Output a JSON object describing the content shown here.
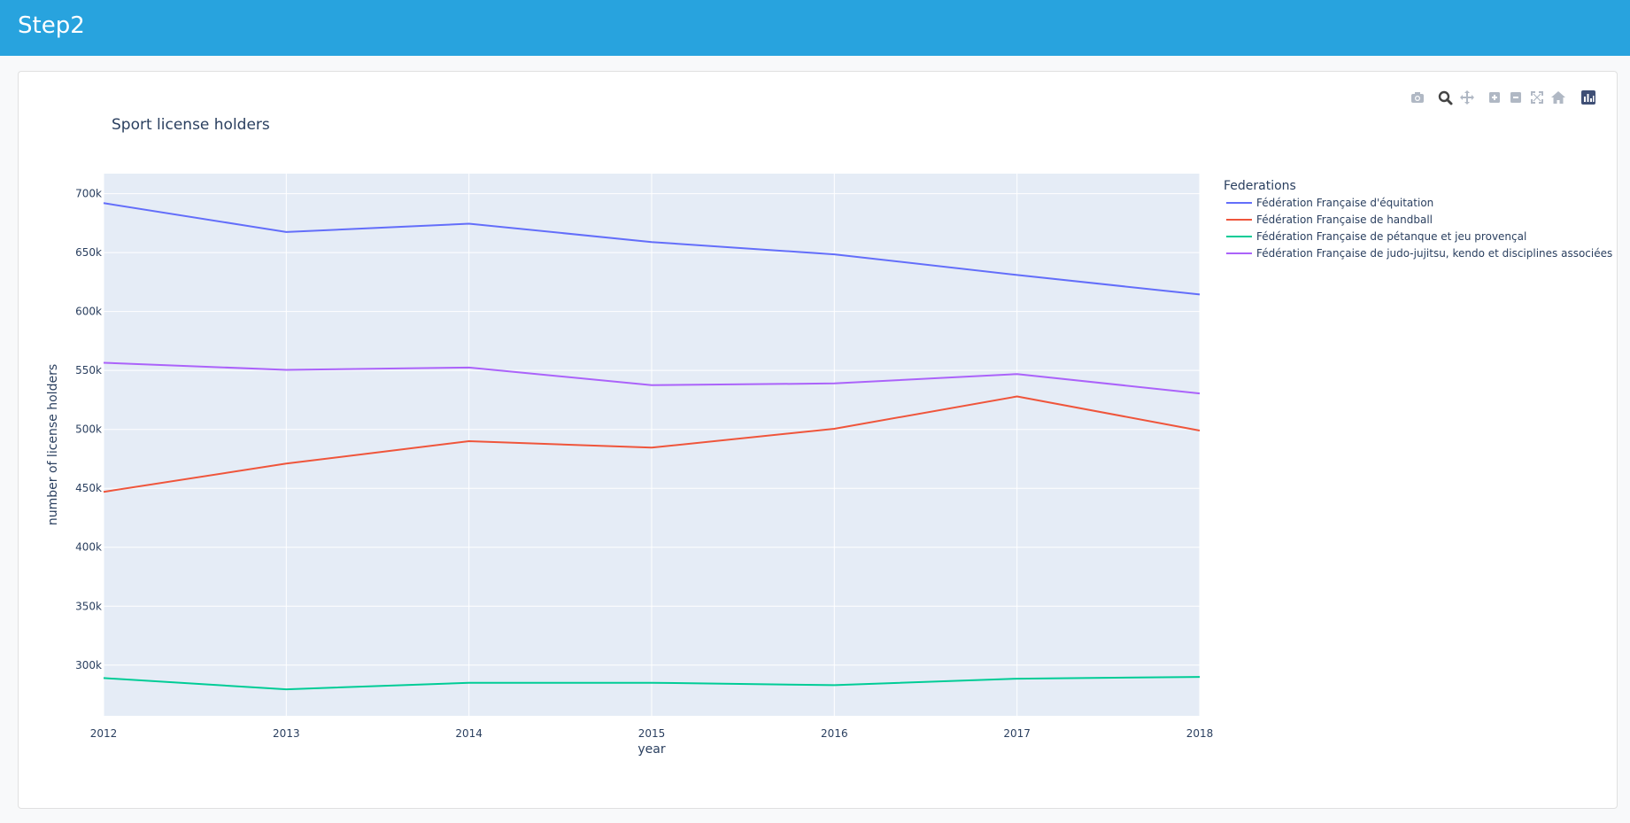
{
  "app": {
    "title": "Step2"
  },
  "modebar": [
    {
      "name": "camera-icon"
    },
    {
      "name": "zoom-icon"
    },
    {
      "name": "pan-icon"
    },
    {
      "name": "zoom-in-icon"
    },
    {
      "name": "zoom-out-icon"
    },
    {
      "name": "autoscale-icon"
    },
    {
      "name": "home-icon"
    },
    {
      "name": "plotly-logo-icon"
    }
  ],
  "chart_data": {
    "type": "line",
    "title": "Sport license holders",
    "xlabel": "year",
    "ylabel": "number of license holders",
    "x": [
      2012,
      2013,
      2014,
      2015,
      2016,
      2017,
      2018
    ],
    "xlim": [
      2012,
      2018
    ],
    "ylim": [
      257000,
      717000
    ],
    "yticks": [
      300000,
      350000,
      400000,
      450000,
      500000,
      550000,
      600000,
      650000,
      700000
    ],
    "ytick_labels": [
      "300k",
      "350k",
      "400k",
      "450k",
      "500k",
      "550k",
      "600k",
      "650k",
      "700k"
    ],
    "xtick_labels": [
      "2012",
      "2013",
      "2014",
      "2015",
      "2016",
      "2017",
      "2018"
    ],
    "grid": true,
    "legend": {
      "title": "Federations",
      "placement": "top-right-outside"
    },
    "plot_bg": "#e5ecf6",
    "series": [
      {
        "name": "Fédération Française d'équitation",
        "color": "#636efa",
        "values": [
          692000,
          667500,
          674500,
          659000,
          648500,
          631000,
          614500
        ]
      },
      {
        "name": "Fédération Française de handball",
        "color": "#ef553b",
        "values": [
          447000,
          471000,
          490000,
          484500,
          500500,
          528000,
          499000
        ]
      },
      {
        "name": "Fédération Française de pétanque et jeu provençal",
        "color": "#00cc96",
        "values": [
          289000,
          279500,
          285000,
          285000,
          283000,
          288500,
          290000
        ]
      },
      {
        "name": "Fédération Française de judo-jujitsu, kendo et disciplines associées",
        "color": "#ab63fa",
        "values": [
          556500,
          550500,
          552500,
          537500,
          539000,
          547000,
          530500
        ]
      }
    ]
  }
}
